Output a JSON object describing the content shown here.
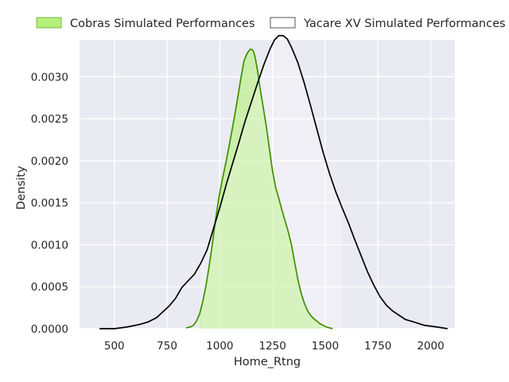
{
  "chart_data": {
    "type": "area",
    "title": "",
    "xlabel": "Home_Rtng",
    "ylabel": "Density",
    "xlim": [
      335,
      2115
    ],
    "ylim": [
      0,
      0.00344
    ],
    "xticks": [
      500,
      750,
      1000,
      1250,
      1500,
      1750,
      2000
    ],
    "xtick_labels": [
      "500",
      "750",
      "1000",
      "1250",
      "1500",
      "1750",
      "2000"
    ],
    "yticks": [
      0,
      0.0005,
      0.001,
      0.0015,
      0.002,
      0.0025,
      0.003
    ],
    "ytick_labels": [
      "0.0000",
      "0.0005",
      "0.0010",
      "0.0015",
      "0.0020",
      "0.0025",
      "0.0030"
    ],
    "grid": true,
    "background": "#eaeaf2",
    "legend_position": "top",
    "series": [
      {
        "name": "Cobras Simulated Performances",
        "line_color": "#3f8f00",
        "fill_color": "#b5f07a",
        "filled": true,
        "x": [
          840,
          860,
          875,
          890,
          905,
          920,
          935,
          950,
          965,
          980,
          995,
          1010,
          1025,
          1040,
          1055,
          1070,
          1085,
          1100,
          1115,
          1130,
          1145,
          1155,
          1160,
          1165,
          1170,
          1180,
          1190,
          1205,
          1220,
          1235,
          1250,
          1265,
          1280,
          1295,
          1310,
          1325,
          1340,
          1355,
          1370,
          1385,
          1400,
          1415,
          1430,
          1445,
          1460,
          1475,
          1490,
          1505,
          1520,
          1535
        ],
        "y": [
          1e-05,
          2e-05,
          4e-05,
          9e-05,
          0.00018,
          0.00033,
          0.00052,
          0.00075,
          0.00101,
          0.0013,
          0.00155,
          0.00175,
          0.00193,
          0.00212,
          0.00232,
          0.00253,
          0.00275,
          0.00298,
          0.00319,
          0.00328,
          0.00333,
          0.00332,
          0.0033,
          0.00326,
          0.0032,
          0.00306,
          0.00288,
          0.00265,
          0.00242,
          0.00215,
          0.00188,
          0.00168,
          0.00155,
          0.00141,
          0.00128,
          0.00115,
          0.001,
          0.00079,
          0.00059,
          0.00043,
          0.00031,
          0.00022,
          0.00016,
          0.00012,
          9e-05,
          6e-05,
          4e-05,
          2e-05,
          1e-05,
          0.0
        ],
        "fill_range": [
          900,
          1500
        ]
      },
      {
        "name": "Yacare XV Simulated Performances",
        "line_color": "#000000",
        "fill_color": "#ffffff",
        "filled": true,
        "x": [
          430,
          500,
          560,
          620,
          660,
          700,
          730,
          760,
          790,
          820,
          850,
          880,
          910,
          940,
          970,
          1000,
          1030,
          1060,
          1090,
          1120,
          1150,
          1180,
          1210,
          1240,
          1260,
          1280,
          1300,
          1320,
          1340,
          1370,
          1400,
          1430,
          1460,
          1490,
          1520,
          1550,
          1580,
          1610,
          1640,
          1670,
          1700,
          1730,
          1760,
          1790,
          1820,
          1850,
          1880,
          1920,
          1970,
          2030,
          2080
        ],
        "y": [
          0.0,
          0.0,
          2e-05,
          5e-05,
          8e-05,
          0.00013,
          0.0002,
          0.00027,
          0.00036,
          0.00049,
          0.00057,
          0.00065,
          0.00078,
          0.00094,
          0.00119,
          0.00144,
          0.00171,
          0.00196,
          0.00221,
          0.00247,
          0.0027,
          0.00293,
          0.00315,
          0.00334,
          0.00344,
          0.00349,
          0.00349,
          0.00345,
          0.00335,
          0.00317,
          0.00293,
          0.00266,
          0.00238,
          0.0021,
          0.00185,
          0.00163,
          0.00144,
          0.00126,
          0.00106,
          0.00087,
          0.00068,
          0.00052,
          0.00038,
          0.00028,
          0.00021,
          0.00016,
          0.00011,
          8e-05,
          4e-05,
          2e-05,
          0.0
        ],
        "fill_range": [
          910,
          1580
        ]
      }
    ]
  }
}
